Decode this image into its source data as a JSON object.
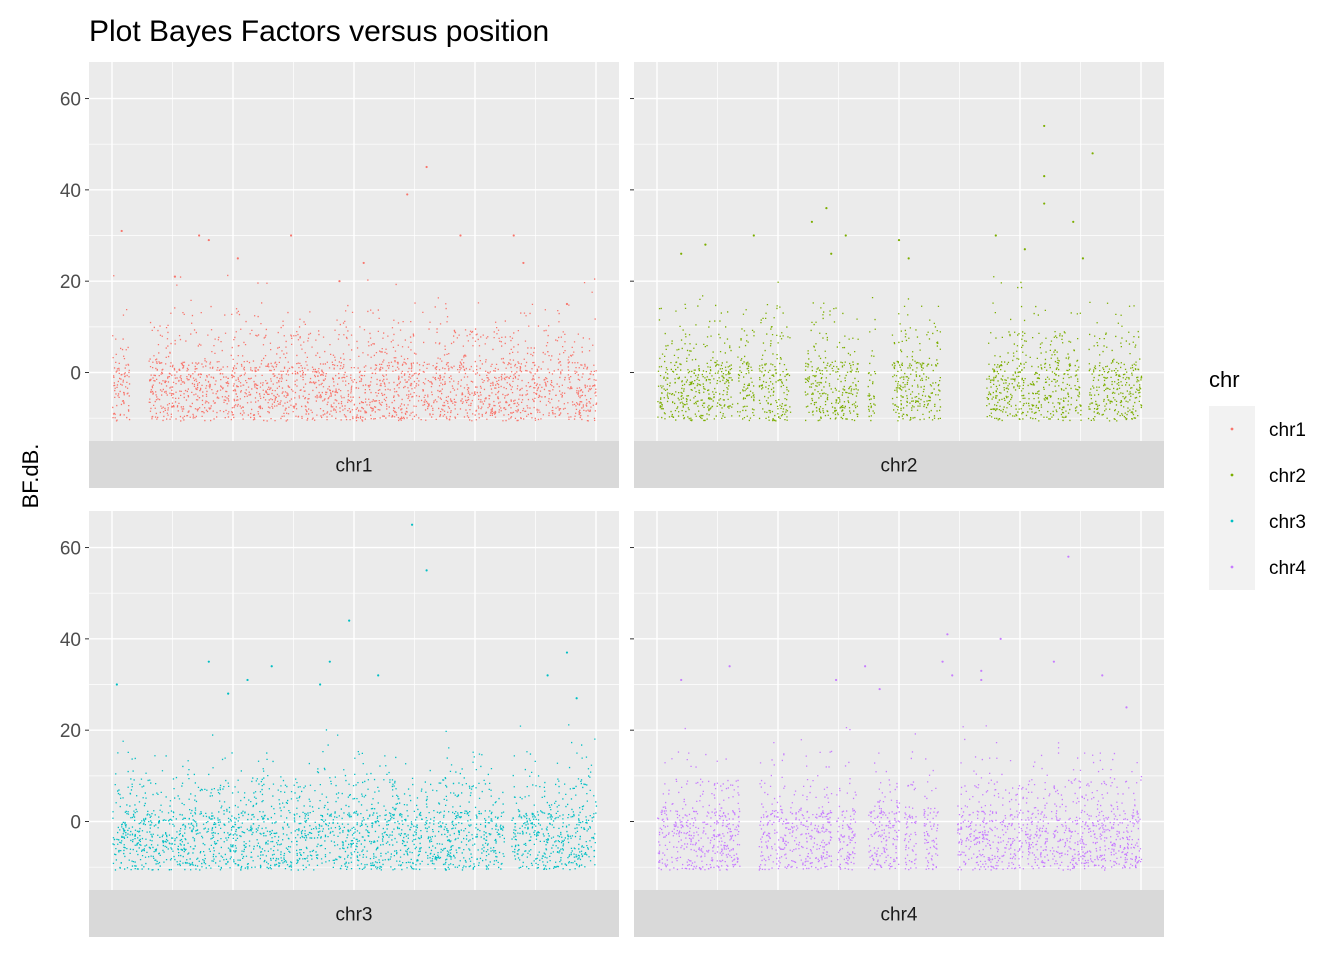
{
  "chart_data": {
    "type": "scatter",
    "title": "Plot Bayes Factors versus position",
    "ylabel": "BF.dB.",
    "xlabel": "",
    "ylim": [
      -15,
      68
    ],
    "yticks": [
      0,
      20,
      40,
      60
    ],
    "grid": true,
    "legend": {
      "title": "chr",
      "placement": "right",
      "entries": [
        "chr1",
        "chr2",
        "chr3",
        "chr4"
      ]
    },
    "series": [
      {
        "name": "chr1",
        "color": "#F8766D",
        "min": -10.5,
        "segments": [
          [
            0.0,
            0.035
          ],
          [
            0.075,
            0.24
          ],
          [
            0.245,
            0.935
          ],
          [
            0.94,
            1.0
          ]
        ],
        "peaks": [
          [
            0.02,
            31
          ],
          [
            0.13,
            21
          ],
          [
            0.18,
            30
          ],
          [
            0.2,
            29
          ],
          [
            0.26,
            25
          ],
          [
            0.37,
            30
          ],
          [
            0.47,
            20
          ],
          [
            0.52,
            24
          ],
          [
            0.61,
            39
          ],
          [
            0.65,
            45
          ],
          [
            0.72,
            30
          ],
          [
            0.83,
            30
          ],
          [
            0.85,
            24
          ],
          [
            0.94,
            15
          ]
        ]
      },
      {
        "name": "chr2",
        "color": "#7CAE00",
        "min": -10.5,
        "segments": [
          [
            0.0,
            0.155
          ],
          [
            0.165,
            0.2
          ],
          [
            0.21,
            0.275
          ],
          [
            0.305,
            0.415
          ],
          [
            0.435,
            0.45
          ],
          [
            0.485,
            0.585
          ],
          [
            0.68,
            0.855
          ],
          [
            0.86,
            0.875
          ],
          [
            0.89,
            1.0
          ]
        ],
        "peaks": [
          [
            0.05,
            26
          ],
          [
            0.1,
            28
          ],
          [
            0.2,
            30
          ],
          [
            0.32,
            33
          ],
          [
            0.35,
            36
          ],
          [
            0.36,
            26
          ],
          [
            0.39,
            30
          ],
          [
            0.5,
            29
          ],
          [
            0.52,
            25
          ],
          [
            0.7,
            30
          ],
          [
            0.76,
            27
          ],
          [
            0.8,
            54
          ],
          [
            0.8,
            43
          ],
          [
            0.8,
            37
          ],
          [
            0.86,
            33
          ],
          [
            0.88,
            25
          ],
          [
            0.9,
            48
          ]
        ]
      },
      {
        "name": "chr3",
        "color": "#00BFC4",
        "min": -10.5,
        "segments": [
          [
            0.0,
            0.37
          ],
          [
            0.375,
            0.64
          ],
          [
            0.645,
            0.81
          ],
          [
            0.825,
            1.0
          ]
        ],
        "peaks": [
          [
            0.01,
            30
          ],
          [
            0.2,
            35
          ],
          [
            0.24,
            28
          ],
          [
            0.28,
            31
          ],
          [
            0.33,
            34
          ],
          [
            0.43,
            30
          ],
          [
            0.45,
            35
          ],
          [
            0.49,
            44
          ],
          [
            0.55,
            32
          ],
          [
            0.62,
            65
          ],
          [
            0.65,
            55
          ],
          [
            0.9,
            32
          ],
          [
            0.94,
            37
          ],
          [
            0.96,
            27
          ]
        ]
      },
      {
        "name": "chr4",
        "color": "#C77CFF",
        "min": -10.5,
        "segments": [
          [
            0.0,
            0.17
          ],
          [
            0.21,
            0.36
          ],
          [
            0.37,
            0.41
          ],
          [
            0.435,
            0.5
          ],
          [
            0.51,
            0.535
          ],
          [
            0.55,
            0.58
          ],
          [
            0.62,
            1.0
          ]
        ],
        "peaks": [
          [
            0.05,
            31
          ],
          [
            0.15,
            34
          ],
          [
            0.37,
            31
          ],
          [
            0.43,
            34
          ],
          [
            0.46,
            29
          ],
          [
            0.59,
            35
          ],
          [
            0.61,
            32
          ],
          [
            0.6,
            41
          ],
          [
            0.67,
            33
          ],
          [
            0.67,
            31
          ],
          [
            0.71,
            40
          ],
          [
            0.82,
            35
          ],
          [
            0.85,
            58
          ],
          [
            0.92,
            32
          ],
          [
            0.97,
            25
          ]
        ]
      }
    ]
  }
}
